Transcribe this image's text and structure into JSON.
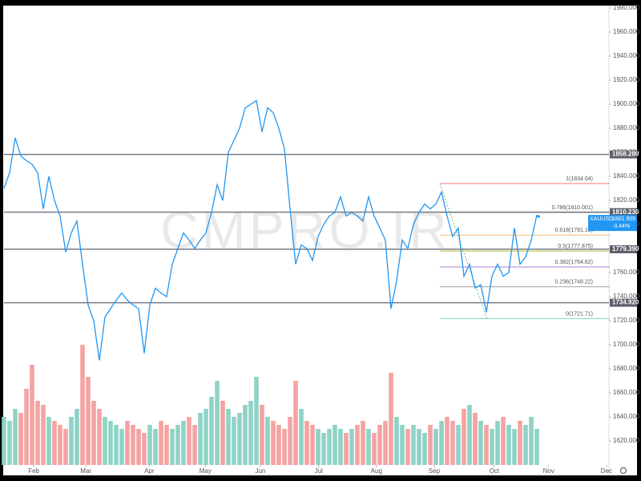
{
  "chart_data": {
    "type": "line",
    "watermark": "CMPRO.IR",
    "xlim": [
      0,
      108
    ],
    "xticks": [
      {
        "value": 5.3,
        "label": "Feb"
      },
      {
        "value": 14.6,
        "label": "Mar"
      },
      {
        "value": 25.9,
        "label": "Apr"
      },
      {
        "value": 35.9,
        "label": "May"
      },
      {
        "value": 45.7,
        "label": "Jun"
      },
      {
        "value": 56.1,
        "label": "Jul"
      },
      {
        "value": 66.4,
        "label": "Aug"
      },
      {
        "value": 76.7,
        "label": "Sep"
      },
      {
        "value": 87.4,
        "label": "Oct"
      },
      {
        "value": 97.1,
        "label": "Nov"
      },
      {
        "value": 107.4,
        "label": "Dec"
      }
    ],
    "ylim": [
      1600,
      1980
    ],
    "yticks": [
      {
        "value": 1620,
        "label": "1620.000"
      },
      {
        "value": 1640,
        "label": "1640.000"
      },
      {
        "value": 1660,
        "label": "1660.000"
      },
      {
        "value": 1680,
        "label": "1680.000"
      },
      {
        "value": 1700,
        "label": "1700.000"
      },
      {
        "value": 1720,
        "label": "1720.000"
      },
      {
        "value": 1740,
        "label": "1740.000"
      },
      {
        "value": 1760,
        "label": "1760.000"
      },
      {
        "value": 1780,
        "label": "1780.000"
      },
      {
        "value": 1800,
        "label": "1800.000"
      },
      {
        "value": 1820,
        "label": "1820.000"
      },
      {
        "value": 1840,
        "label": "1840.000"
      },
      {
        "value": 1860,
        "label": "1860.000"
      },
      {
        "value": 1880,
        "label": "1880.000"
      },
      {
        "value": 1900,
        "label": "1900.000"
      },
      {
        "value": 1920,
        "label": "1920.000"
      },
      {
        "value": 1940,
        "label": "1940.000"
      },
      {
        "value": 1960,
        "label": "1960.000"
      },
      {
        "value": 1980,
        "label": "1980.000"
      }
    ],
    "series": [
      {
        "name": "XAUUSD",
        "color": "#2196f3",
        "values": [
          1830,
          1843,
          1872,
          1857,
          1853,
          1850,
          1843,
          1813,
          1840,
          1820,
          1807,
          1777,
          1793,
          1803,
          1767,
          1733,
          1720,
          1687,
          1723,
          1730,
          1737,
          1743,
          1737,
          1733,
          1730,
          1693,
          1733,
          1747,
          1743,
          1740,
          1767,
          1780,
          1793,
          1787,
          1780,
          1787,
          1793,
          1810,
          1833,
          1820,
          1860,
          1870,
          1880,
          1897,
          1900,
          1903,
          1877,
          1897,
          1893,
          1880,
          1863,
          1813,
          1767,
          1783,
          1780,
          1770,
          1790,
          1800,
          1807,
          1810,
          1823,
          1807,
          1810,
          1807,
          1803,
          1823,
          1807,
          1797,
          1787,
          1730,
          1753,
          1787,
          1780,
          1800,
          1810,
          1817,
          1813,
          1817,
          1827,
          1807,
          1790,
          1797,
          1757,
          1767,
          1747,
          1750,
          1727,
          1757,
          1767,
          1757,
          1760,
          1797,
          1767,
          1773,
          1787,
          1808
        ]
      }
    ],
    "last_price": 1801.905,
    "change": "-3.44%",
    "volume": {
      "vlim": [
        0,
        180
      ],
      "up_color": "#8fd3c6",
      "down_color": "#f4a3a3",
      "values": [
        60,
        55,
        70,
        65,
        95,
        125,
        80,
        75,
        60,
        55,
        50,
        45,
        60,
        70,
        150,
        110,
        80,
        70,
        60,
        55,
        50,
        45,
        55,
        50,
        45,
        40,
        50,
        45,
        55,
        50,
        45,
        50,
        55,
        60,
        50,
        65,
        70,
        85,
        105,
        80,
        70,
        60,
        65,
        75,
        80,
        110,
        75,
        60,
        55,
        50,
        45,
        60,
        105,
        70,
        55,
        50,
        45,
        40,
        45,
        50,
        45,
        40,
        45,
        50,
        55,
        45,
        40,
        50,
        55,
        115,
        60,
        50,
        45,
        50,
        45,
        40,
        50,
        45,
        55,
        60,
        55,
        50,
        70,
        75,
        65,
        55,
        50,
        45,
        55,
        60,
        50,
        45,
        55,
        50,
        60,
        45
      ]
    },
    "hlines": [
      {
        "value": 1858.28,
        "label": "1858.280"
      },
      {
        "value": 1810.23,
        "label": "1810.230"
      },
      {
        "value": 1779.39,
        "label": "1779.390"
      },
      {
        "value": 1734.92,
        "label": "1734.920"
      }
    ],
    "fib": {
      "anchor_x": [
        77.7,
        86.1
      ],
      "x_end": 108,
      "levels": [
        {
          "value": 1834.04,
          "label": "1(1834.04)",
          "color": "#f28b8b"
        },
        {
          "value": 1810.001,
          "label": "0.786(1810.001)",
          "color": "#9e9e9e"
        },
        {
          "value": 1791.13,
          "label": "0.618(1791.13)",
          "color": "#f5c282"
        },
        {
          "value": 1777.875,
          "label": "0.5(1777.875)",
          "color": "#c5c94e"
        },
        {
          "value": 1764.62,
          "label": "0.382(1764.62)",
          "color": "#b58fd8"
        },
        {
          "value": 1748.22,
          "label": "0.236(1748.22)",
          "color": "#aaaaaa"
        },
        {
          "value": 1721.71,
          "label": "0(1721.71)",
          "color": "#86dccb"
        }
      ]
    }
  }
}
